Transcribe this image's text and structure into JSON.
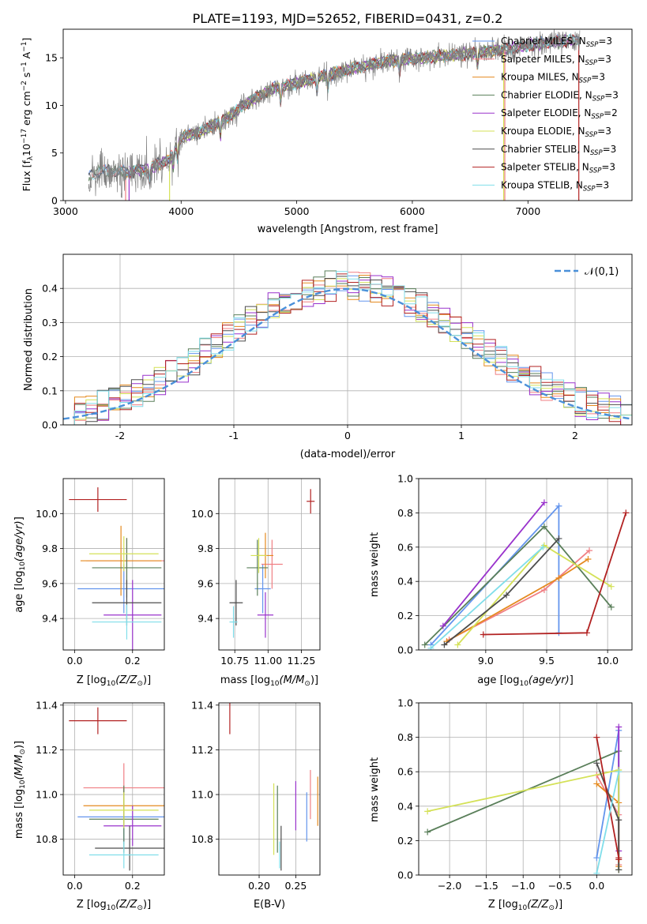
{
  "title": "PLATE=1193, MJD=52652, FIBERID=0431, z=0.2",
  "colors": {
    "Chabrier MILES": "#6495ed",
    "Salpeter MILES": "#f07f84",
    "Kroupa MILES": "#e58a1f",
    "Chabrier ELODIE": "#5a7f5a",
    "Salpeter ELODIE": "#9932cc",
    "Kroupa ELODIE": "#d4e157",
    "Chabrier STELIB": "#4d4d4d",
    "Salpeter STELIB": "#b22222",
    "Kroupa STELIB": "#80deea",
    "data": "#808080",
    "normal": "#4a90d9"
  },
  "chart_data": [
    {
      "type": "line",
      "panel": "spectrum",
      "xlabel": "wavelength [Angstrom, rest frame]",
      "ylabel": "Flux [f_λ 10^-17 erg cm^-2 s^-1 A^-1]",
      "xlim": [
        2980,
        7900
      ],
      "ylim": [
        0,
        18
      ],
      "xticks": [
        3000,
        4000,
        5000,
        6000,
        7000
      ],
      "yticks": [
        0,
        5,
        10,
        15
      ],
      "legend_position": "upper right",
      "legend": [
        "Chabrier MILES, N_SSP=3",
        "Salpeter MILES, N_SSP=3",
        "Kroupa MILES, N_SSP=3",
        "Chabrier ELODIE, N_SSP=3",
        "Salpeter ELODIE, N_SSP=2",
        "Kroupa ELODIE, N_SSP=3",
        "Chabrier STELIB, N_SSP=3",
        "Salpeter STELIB, N_SSP=3",
        "Kroupa STELIB, N_SSP=3"
      ],
      "continuum_knots": [
        [
          3200,
          2.5
        ],
        [
          3300,
          3.1
        ],
        [
          3500,
          3.0
        ],
        [
          3700,
          3.3
        ],
        [
          3900,
          4.3
        ],
        [
          4000,
          6.6
        ],
        [
          4200,
          7.4
        ],
        [
          4400,
          8.7
        ],
        [
          4600,
          10.5
        ],
        [
          4800,
          11.8
        ],
        [
          5000,
          12.3
        ],
        [
          5200,
          13.0
        ],
        [
          5400,
          13.6
        ],
        [
          5600,
          14.2
        ],
        [
          5800,
          14.7
        ],
        [
          6000,
          14.9
        ],
        [
          6200,
          15.1
        ],
        [
          6400,
          15.3
        ],
        [
          6600,
          15.6
        ],
        [
          6800,
          15.9
        ],
        [
          7000,
          16.3
        ],
        [
          7200,
          16.6
        ],
        [
          7450,
          16.9
        ]
      ],
      "x_start": 3200,
      "x_end": 7450
    },
    {
      "type": "step",
      "panel": "residuals",
      "xlabel": "(data-model)/error",
      "ylabel": "Normed distribution",
      "xlim": [
        -2.5,
        2.5
      ],
      "ylim": [
        0,
        0.5
      ],
      "xticks": [
        -2,
        -1,
        0,
        1,
        2
      ],
      "yticks": [
        0.0,
        0.1,
        0.2,
        0.3,
        0.4
      ],
      "legend": [
        "𝒩(0,1)"
      ],
      "bin_width": 0.1
    },
    {
      "type": "errorbar",
      "panel": "age-vs-Z",
      "xlabel": "Z [log10(Z/Z⊙)]",
      "ylabel": "age [log10(age/yr)]",
      "xlim": [
        -0.04,
        0.31
      ],
      "ylim": [
        9.22,
        10.2
      ],
      "xticks": [
        0.0,
        0.2
      ],
      "yticks": [
        9.4,
        9.6,
        9.8,
        10.0
      ],
      "points": [
        {
          "model": "Chabrier MILES",
          "x": 0.17,
          "y": 9.57,
          "xerr": 0.16,
          "yerr": 0.14
        },
        {
          "model": "Salpeter MILES",
          "x": 0.18,
          "y": 9.73,
          "xerr": 0.14,
          "yerr": 0.13
        },
        {
          "model": "Kroupa MILES",
          "x": 0.16,
          "y": 9.73,
          "xerr": 0.14,
          "yerr": 0.2
        },
        {
          "model": "Chabrier ELODIE",
          "x": 0.18,
          "y": 9.69,
          "xerr": 0.12,
          "yerr": 0.17
        },
        {
          "model": "Salpeter ELODIE",
          "x": 0.2,
          "y": 9.42,
          "xerr": 0.1,
          "yerr": 0.2
        },
        {
          "model": "Kroupa ELODIE",
          "x": 0.17,
          "y": 9.77,
          "xerr": 0.12,
          "yerr": 0.1
        },
        {
          "model": "Chabrier STELIB",
          "x": 0.18,
          "y": 9.49,
          "xerr": 0.12,
          "yerr": 0.13
        },
        {
          "model": "Salpeter STELIB",
          "x": 0.08,
          "y": 10.08,
          "xerr": 0.1,
          "yerr": 0.07
        },
        {
          "model": "Kroupa STELIB",
          "x": 0.18,
          "y": 9.38,
          "xerr": 0.12,
          "yerr": 0.1
        }
      ]
    },
    {
      "type": "errorbar",
      "panel": "age-vs-mass",
      "xlabel": "mass [log10(M/M⊙)]",
      "ylabel": "",
      "xlim": [
        10.63,
        11.39
      ],
      "ylim": [
        9.22,
        10.2
      ],
      "xticks": [
        10.75,
        11.0,
        11.25
      ],
      "yticks": [
        9.4,
        9.6,
        9.8,
        10.0
      ],
      "points": [
        {
          "model": "Chabrier MILES",
          "x": 10.96,
          "y": 9.57,
          "xerr": 0.06,
          "yerr": 0.14
        },
        {
          "model": "Salpeter MILES",
          "x": 11.03,
          "y": 9.71,
          "xerr": 0.08,
          "yerr": 0.14
        },
        {
          "model": "Kroupa MILES",
          "x": 10.98,
          "y": 9.76,
          "xerr": 0.06,
          "yerr": 0.13
        },
        {
          "model": "Chabrier ELODIE",
          "x": 10.92,
          "y": 9.69,
          "xerr": 0.08,
          "yerr": 0.16
        },
        {
          "model": "Salpeter ELODIE",
          "x": 10.98,
          "y": 9.42,
          "xerr": 0.06,
          "yerr": 0.13
        },
        {
          "model": "Kroupa ELODIE",
          "x": 10.93,
          "y": 9.76,
          "xerr": 0.06,
          "yerr": 0.1
        },
        {
          "model": "Chabrier STELIB",
          "x": 10.76,
          "y": 9.49,
          "xerr": 0.05,
          "yerr": 0.13
        },
        {
          "model": "Salpeter STELIB",
          "x": 11.32,
          "y": 10.07,
          "xerr": 0.03,
          "yerr": 0.07
        },
        {
          "model": "Kroupa STELIB",
          "x": 10.74,
          "y": 9.38,
          "xerr": 0.03,
          "yerr": 0.09
        }
      ]
    },
    {
      "type": "line",
      "panel": "weight-vs-age",
      "xlabel": "age [log10(age/yr)]",
      "ylabel": "mass weight",
      "xlim": [
        8.45,
        10.2
      ],
      "ylim": [
        0.0,
        1.0
      ],
      "xticks": [
        9.0,
        9.5,
        10.0
      ],
      "yticks": [
        0.0,
        0.2,
        0.4,
        0.6,
        0.8,
        1.0
      ],
      "series": [
        {
          "model": "Chabrier MILES",
          "x": [
            8.55,
            9.6,
            9.6
          ],
          "y": [
            0.03,
            0.84,
            0.1
          ]
        },
        {
          "model": "Salpeter MILES",
          "x": [
            8.7,
            9.48,
            9.85
          ],
          "y": [
            0.06,
            0.35,
            0.58
          ]
        },
        {
          "model": "Kroupa MILES",
          "x": [
            8.68,
            9.6,
            9.84
          ],
          "y": [
            0.05,
            0.42,
            0.53
          ]
        },
        {
          "model": "Chabrier ELODIE",
          "x": [
            8.5,
            9.48,
            10.03
          ],
          "y": [
            0.03,
            0.72,
            0.25
          ]
        },
        {
          "model": "Salpeter ELODIE",
          "x": [
            8.65,
            9.48
          ],
          "y": [
            0.14,
            0.86
          ]
        },
        {
          "model": "Kroupa ELODIE",
          "x": [
            8.77,
            9.48,
            10.03
          ],
          "y": [
            0.03,
            0.61,
            0.37
          ]
        },
        {
          "model": "Chabrier STELIB",
          "x": [
            8.66,
            9.17,
            9.6
          ],
          "y": [
            0.03,
            0.32,
            0.65
          ]
        },
        {
          "model": "Salpeter STELIB",
          "x": [
            8.98,
            9.83,
            10.15
          ],
          "y": [
            0.09,
            0.1,
            0.8
          ]
        },
        {
          "model": "Kroupa STELIB",
          "x": [
            8.55,
            9.47
          ],
          "y": [
            0.01,
            0.6
          ]
        }
      ]
    },
    {
      "type": "errorbar",
      "panel": "mass-vs-Z",
      "xlabel": "Z [log10(Z/Z⊙)]",
      "ylabel": "mass [log10(M/M⊙)]",
      "xlim": [
        -0.04,
        0.31
      ],
      "ylim": [
        10.64,
        11.41
      ],
      "xticks": [
        0.0,
        0.2
      ],
      "yticks": [
        10.8,
        11.0,
        11.2,
        11.4
      ],
      "points": [
        {
          "model": "Chabrier MILES",
          "x": 0.17,
          "y": 10.9,
          "xerr": 0.16,
          "yerr": 0.12
        },
        {
          "model": "Salpeter MILES",
          "x": 0.17,
          "y": 11.03,
          "xerr": 0.14,
          "yerr": 0.11
        },
        {
          "model": "Kroupa MILES",
          "x": 0.17,
          "y": 10.95,
          "xerr": 0.14,
          "yerr": 0.08
        },
        {
          "model": "Chabrier ELODIE",
          "x": 0.17,
          "y": 10.89,
          "xerr": 0.12,
          "yerr": 0.15
        },
        {
          "model": "Salpeter ELODIE",
          "x": 0.2,
          "y": 10.86,
          "xerr": 0.1,
          "yerr": 0.09
        },
        {
          "model": "Kroupa ELODIE",
          "x": 0.17,
          "y": 10.93,
          "xerr": 0.12,
          "yerr": 0.08
        },
        {
          "model": "Chabrier STELIB",
          "x": 0.19,
          "y": 10.76,
          "xerr": 0.12,
          "yerr": 0.1
        },
        {
          "model": "Salpeter STELIB",
          "x": 0.08,
          "y": 11.33,
          "xerr": 0.1,
          "yerr": 0.06
        },
        {
          "model": "Kroupa STELIB",
          "x": 0.17,
          "y": 10.73,
          "xerr": 0.12,
          "yerr": 0.06
        }
      ]
    },
    {
      "type": "errorbar",
      "panel": "mass-vs-EBV",
      "xlabel": "E(B-V)",
      "ylabel": "",
      "xlim": [
        0.145,
        0.283
      ],
      "ylim": [
        10.64,
        11.41
      ],
      "xticks": [
        0.2,
        0.25
      ],
      "yticks": [
        10.8,
        11.0,
        11.2,
        11.4
      ],
      "points": [
        {
          "model": "Chabrier MILES",
          "x": 0.265,
          "y": 10.9,
          "yerr": 0.11
        },
        {
          "model": "Salpeter MILES",
          "x": 0.27,
          "y": 11.0,
          "yerr": 0.11
        },
        {
          "model": "Kroupa MILES",
          "x": 0.28,
          "y": 10.97,
          "yerr": 0.11
        },
        {
          "model": "Chabrier ELODIE",
          "x": 0.225,
          "y": 10.89,
          "yerr": 0.15
        },
        {
          "model": "Salpeter ELODIE",
          "x": 0.25,
          "y": 10.95,
          "yerr": 0.11
        },
        {
          "model": "Kroupa ELODIE",
          "x": 0.22,
          "y": 10.89,
          "yerr": 0.16
        },
        {
          "model": "Chabrier STELIB",
          "x": 0.23,
          "y": 10.76,
          "yerr": 0.1
        },
        {
          "model": "Salpeter STELIB",
          "x": 0.16,
          "y": 11.34,
          "yerr": 0.07
        },
        {
          "model": "Kroupa STELIB",
          "x": 0.228,
          "y": 10.73,
          "yerr": 0.06
        }
      ]
    },
    {
      "type": "line",
      "panel": "weight-vs-Z",
      "xlabel": "Z [log10(Z/Z⊙)]",
      "ylabel": "mass weight",
      "xlim": [
        -2.42,
        0.48
      ],
      "ylim": [
        0.0,
        1.0
      ],
      "xticks": [
        -2.0,
        -1.5,
        -1.0,
        -0.5,
        0.0
      ],
      "yticks": [
        0.0,
        0.2,
        0.4,
        0.6,
        0.8,
        1.0
      ],
      "series": [
        {
          "model": "Chabrier MILES",
          "x": [
            0.0,
            0.3,
            0.3
          ],
          "y": [
            0.1,
            0.84,
            0.03
          ]
        },
        {
          "model": "Salpeter MILES",
          "x": [
            0.0,
            0.3,
            0.3
          ],
          "y": [
            0.58,
            0.35,
            0.06
          ]
        },
        {
          "model": "Kroupa MILES",
          "x": [
            0.0,
            0.3,
            0.3
          ],
          "y": [
            0.53,
            0.42,
            0.05
          ]
        },
        {
          "model": "Chabrier ELODIE",
          "x": [
            -2.3,
            0.3,
            0.3
          ],
          "y": [
            0.25,
            0.72,
            0.03
          ]
        },
        {
          "model": "Salpeter ELODIE",
          "x": [
            0.3,
            0.3
          ],
          "y": [
            0.86,
            0.14
          ]
        },
        {
          "model": "Kroupa ELODIE",
          "x": [
            -2.3,
            0.3,
            0.3
          ],
          "y": [
            0.37,
            0.61,
            0.03
          ]
        },
        {
          "model": "Chabrier STELIB",
          "x": [
            0.0,
            0.3,
            0.3
          ],
          "y": [
            0.65,
            0.32,
            0.03
          ]
        },
        {
          "model": "Salpeter STELIB",
          "x": [
            0.0,
            0.3,
            0.3
          ],
          "y": [
            0.8,
            0.1,
            0.09
          ]
        },
        {
          "model": "Kroupa STELIB",
          "x": [
            0.0,
            0.3
          ],
          "y": [
            0.01,
            0.6
          ]
        }
      ]
    }
  ]
}
